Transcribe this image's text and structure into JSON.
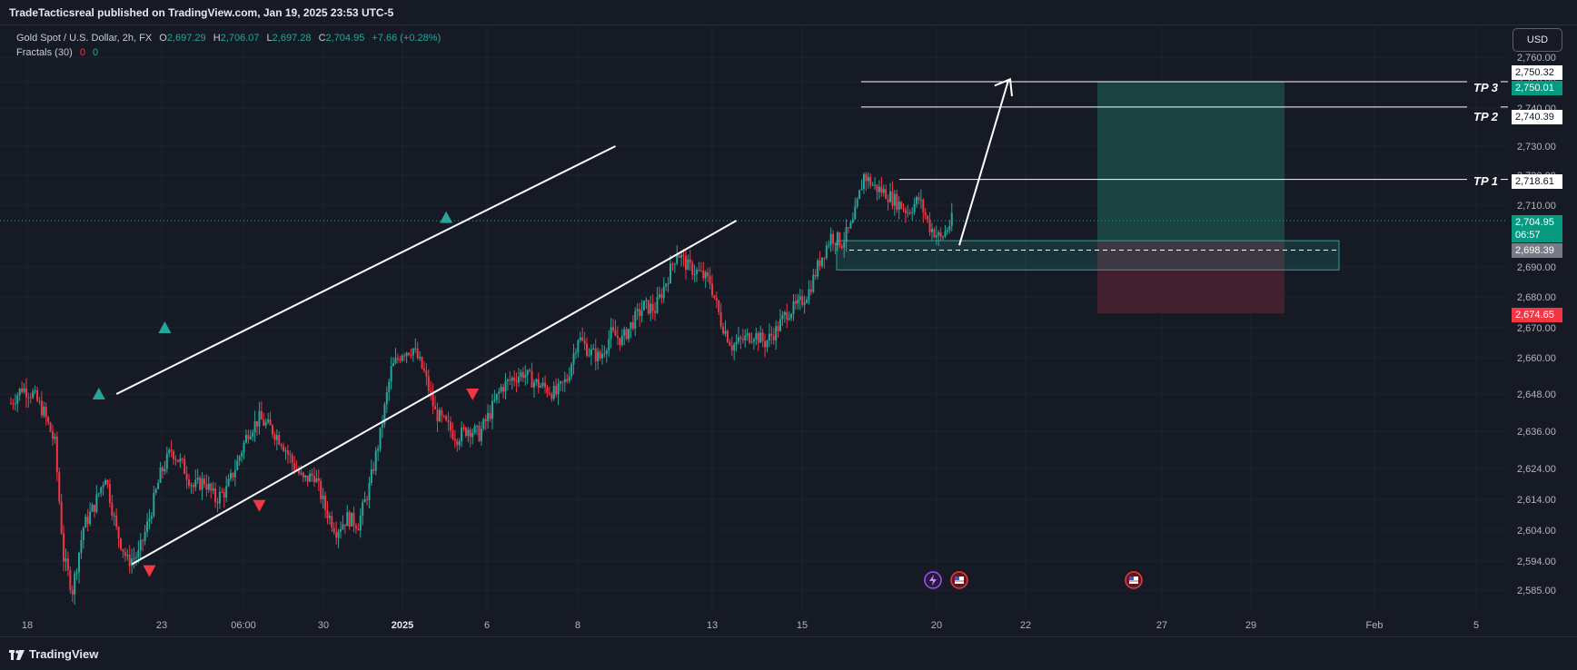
{
  "header": {
    "publisher": "TradeTacticsreal published on TradingView.com, Jan 19, 2025 23:53 UTC-5"
  },
  "legend": {
    "symbol": "Gold Spot / U.S. Dollar, 2h, FX",
    "o_label": "O",
    "o_value": "2,697.29",
    "h_label": "H",
    "h_value": "2,706.07",
    "l_label": "L",
    "l_value": "2,697.28",
    "c_label": "C",
    "c_value": "2,704.95",
    "change": "+7.66 (+0.28%)",
    "indicator": "Fractals (30)",
    "ind_v1": "0",
    "ind_v2": "0"
  },
  "toolbar": {
    "currency": "USD"
  },
  "footer": {
    "brand": "TradingView"
  },
  "colors": {
    "background": "#161a25",
    "up": "#26a69a",
    "down": "#f23645",
    "profit_zone": "#1a4a45",
    "loss_zone": "#4a2230",
    "channel": "#ffffff"
  },
  "price_tags": {
    "p1": "2,750.32",
    "p2": "2,750.01",
    "p3": "2,740.39",
    "p4": "2,718.61",
    "current": "2,704.95",
    "countdown": "06:57",
    "p5": "2,698.39",
    "stop": "2,674.65"
  },
  "targets": {
    "tp1": "TP 1",
    "tp2": "TP 2",
    "tp3": "TP 3"
  },
  "chart_data": {
    "type": "candlestick",
    "instrument": "Gold Spot / U.S. Dollar",
    "timeframe": "2h",
    "y_ticks": [
      "2,760.00",
      "2,750.00",
      "2,740.00",
      "2,730.00",
      "2,720.00",
      "2,710.00",
      "2,690.00",
      "2,680.00",
      "2,670.00",
      "2,660.00",
      "2,648.00",
      "2,636.00",
      "2,624.00",
      "2,614.00",
      "2,604.00",
      "2,594.00",
      "2,585.00"
    ],
    "x_ticks": [
      "18",
      "23",
      "06:00",
      "30",
      "2025",
      "6",
      "8",
      "13",
      "15",
      "20",
      "22",
      "27",
      "29",
      "Feb",
      "5"
    ],
    "ylim": [
      2580,
      2765
    ],
    "path": [
      [
        0,
        2645
      ],
      [
        5,
        2650
      ],
      [
        10,
        2648
      ],
      [
        15,
        2642
      ],
      [
        20,
        2632
      ],
      [
        24,
        2595
      ],
      [
        28,
        2585
      ],
      [
        33,
        2605
      ],
      [
        38,
        2612
      ],
      [
        43,
        2622
      ],
      [
        48,
        2604
      ],
      [
        53,
        2594
      ],
      [
        58,
        2596
      ],
      [
        63,
        2608
      ],
      [
        68,
        2622
      ],
      [
        73,
        2630
      ],
      [
        78,
        2625
      ],
      [
        83,
        2618
      ],
      [
        88,
        2620
      ],
      [
        93,
        2614
      ],
      [
        98,
        2617
      ],
      [
        103,
        2626
      ],
      [
        108,
        2636
      ],
      [
        113,
        2640
      ],
      [
        118,
        2637
      ],
      [
        123,
        2633
      ],
      [
        128,
        2626
      ],
      [
        133,
        2620
      ],
      [
        138,
        2622
      ],
      [
        143,
        2611
      ],
      [
        148,
        2604
      ],
      [
        153,
        2608
      ],
      [
        158,
        2606
      ],
      [
        163,
        2618
      ],
      [
        168,
        2635
      ],
      [
        173,
        2656
      ],
      [
        178,
        2662
      ],
      [
        183,
        2663
      ],
      [
        188,
        2655
      ],
      [
        193,
        2642
      ],
      [
        198,
        2638
      ],
      [
        203,
        2634
      ],
      [
        208,
        2637
      ],
      [
        213,
        2635
      ],
      [
        218,
        2642
      ],
      [
        223,
        2650
      ],
      [
        228,
        2653
      ],
      [
        233,
        2655
      ],
      [
        238,
        2652
      ],
      [
        243,
        2650
      ],
      [
        248,
        2648
      ],
      [
        253,
        2653
      ],
      [
        258,
        2667
      ],
      [
        263,
        2662
      ],
      [
        268,
        2660
      ],
      [
        273,
        2668
      ],
      [
        278,
        2666
      ],
      [
        283,
        2672
      ],
      [
        288,
        2677
      ],
      [
        293,
        2676
      ],
      [
        298,
        2685
      ],
      [
        303,
        2695
      ],
      [
        308,
        2690
      ],
      [
        313,
        2688
      ],
      [
        318,
        2685
      ],
      [
        323,
        2672
      ],
      [
        328,
        2664
      ],
      [
        333,
        2666
      ],
      [
        338,
        2668
      ],
      [
        343,
        2665
      ],
      [
        348,
        2669
      ],
      [
        353,
        2675
      ],
      [
        358,
        2677
      ],
      [
        363,
        2682
      ],
      [
        368,
        2692
      ],
      [
        373,
        2700
      ],
      [
        378,
        2698
      ],
      [
        383,
        2704
      ],
      [
        388,
        2720
      ],
      [
        393,
        2716
      ],
      [
        398,
        2714
      ],
      [
        403,
        2711
      ],
      [
        408,
        2708
      ],
      [
        413,
        2712
      ],
      [
        418,
        2703
      ],
      [
        423,
        2699
      ],
      [
        428,
        2705
      ]
    ],
    "fractals_up": [
      [
        40,
        2648
      ],
      [
        70,
        2670
      ],
      [
        198,
        2706
      ]
    ],
    "fractals_down": [
      [
        63,
        2591
      ],
      [
        113,
        2612
      ],
      [
        210,
        2648
      ]
    ],
    "channel_upper": [
      [
        48,
        2648
      ],
      [
        275,
        2730
      ]
    ],
    "channel_lower": [
      [
        55,
        2593
      ],
      [
        330,
        2705
      ]
    ],
    "entry": 2698.39,
    "stop_loss": 2674.65,
    "take_profits": [
      2718.61,
      2740.39,
      2750.01
    ],
    "current_price": 2704.95
  }
}
